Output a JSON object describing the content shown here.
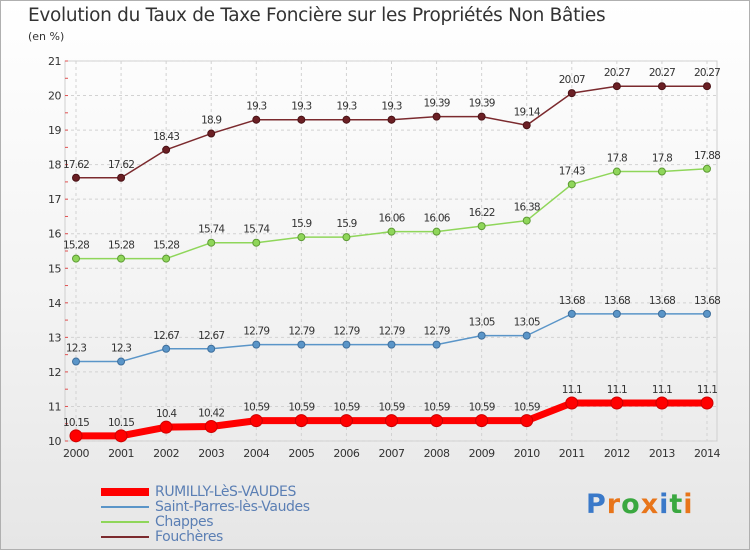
{
  "chart_data": {
    "type": "line",
    "title": "Evolution du Taux de Taxe Foncière sur les Propriétés Non Bâties",
    "unit_label": "(en %)",
    "x": [
      "2000",
      "2001",
      "2002",
      "2003",
      "2004",
      "2005",
      "2006",
      "2007",
      "2008",
      "2009",
      "2010",
      "2011",
      "2012",
      "2013",
      "2014"
    ],
    "ylim": [
      10,
      21
    ],
    "yticks": [
      10,
      11,
      12,
      13,
      14,
      15,
      16,
      17,
      18,
      19,
      20,
      21
    ],
    "grid": true,
    "legend_position": "bottom-left",
    "series": [
      {
        "name": "RUMILLY-LèS-VAUDES",
        "color": "#ff0000",
        "values": [
          10.15,
          10.15,
          10.4,
          10.42,
          10.59,
          10.59,
          10.59,
          10.59,
          10.59,
          10.59,
          10.59,
          11.1,
          11.1,
          11.1,
          11.1
        ]
      },
      {
        "name": "Saint-Parres-lès-Vaudes",
        "color": "#5a95c8",
        "values": [
          12.3,
          12.3,
          12.67,
          12.67,
          12.79,
          12.79,
          12.79,
          12.79,
          12.79,
          13.05,
          13.05,
          13.68,
          13.68,
          13.68,
          13.68
        ]
      },
      {
        "name": "Chappes",
        "color": "#8fd65a",
        "values": [
          15.28,
          15.28,
          15.28,
          15.74,
          15.74,
          15.9,
          15.9,
          16.06,
          16.06,
          16.22,
          16.38,
          17.43,
          17.8,
          17.8,
          17.88
        ]
      },
      {
        "name": "Fouchères",
        "color": "#7b2a2e",
        "values": [
          17.62,
          17.62,
          18.43,
          18.9,
          19.3,
          19.3,
          19.3,
          19.3,
          19.39,
          19.39,
          19.14,
          20.07,
          20.27,
          20.27,
          20.27
        ]
      }
    ]
  },
  "logo": {
    "text": "Proxiti"
  }
}
